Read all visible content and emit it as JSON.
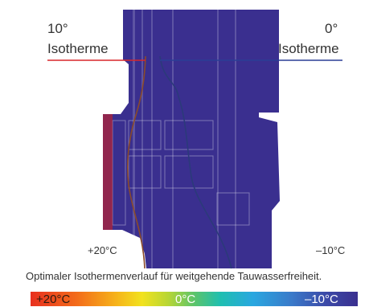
{
  "left_isotherm": {
    "degree": "10°",
    "label": "Isotherme",
    "line_color": "#d8262b"
  },
  "right_isotherm": {
    "degree": "0°",
    "label": "Isotherme",
    "line_color": "#2b3f96"
  },
  "inner_labels": {
    "warm": "+20°C",
    "cold": "–10°C"
  },
  "caption": "Optimaler Isothermenverlauf für weitgehende Tauwasserfreiheit.",
  "scale": {
    "left": "+20°C",
    "mid": "0°C",
    "right": "–10°C"
  },
  "colors": {
    "warm": "#e8301f",
    "neutral": "#5cc46a",
    "cold": "#3a2f8f"
  }
}
